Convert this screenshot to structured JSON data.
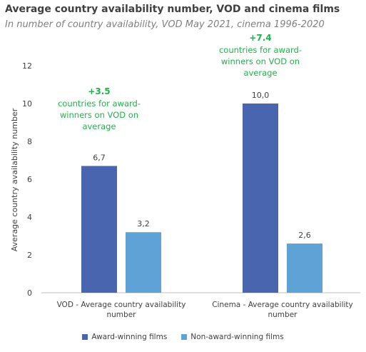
{
  "chart_data": {
    "type": "bar",
    "title": "Average country availability number, VOD and cinema films",
    "subtitle": "In number of country availability, VOD May 2021, cinema 1996-2020",
    "xlabel": "",
    "ylabel": "Average country availability number",
    "ylim": [
      0,
      12
    ],
    "yticks": [
      0,
      2,
      4,
      6,
      8,
      10,
      12
    ],
    "grid": false,
    "legend_position": "bottom",
    "categories": [
      "VOD - Average country availability number",
      "Cinema - Average country availability number"
    ],
    "series": [
      {
        "name": "Award-winning films",
        "color": "#4a65b0",
        "values": [
          6.7,
          10.0
        ],
        "labels": [
          "6,7",
          "10,0"
        ]
      },
      {
        "name": "Non-award-winning films",
        "color": "#5ea2d6",
        "values": [
          3.2,
          2.6
        ],
        "labels": [
          "3,2",
          "2,6"
        ]
      }
    ],
    "annotations": [
      {
        "category": 0,
        "highlight": "+3.5",
        "text": [
          "countries for award-",
          "winners on VOD on",
          "average"
        ],
        "color": "#21b24b"
      },
      {
        "category": 1,
        "highlight": "+7.4",
        "text": [
          "countries for award-",
          "winners on VOD on",
          "average"
        ],
        "color": "#21b24b"
      }
    ]
  }
}
